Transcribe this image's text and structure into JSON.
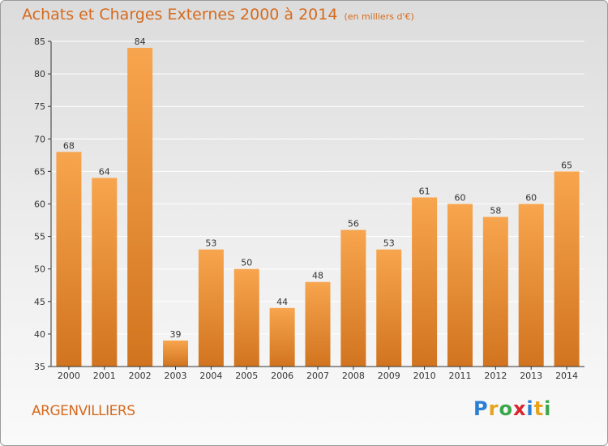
{
  "header": {
    "title": "Achats et Charges Externes 2000 à 2014",
    "subtitle": "(en milliers d'€)"
  },
  "footer": {
    "commune": "ARGENVILLIERS",
    "logo_letters": [
      {
        "char": "P",
        "color": "#2a7fd4"
      },
      {
        "char": "r",
        "color": "#e8a21c"
      },
      {
        "char": "o",
        "color": "#3aa84a"
      },
      {
        "char": "x",
        "color": "#d8262c"
      },
      {
        "char": "i",
        "color": "#2a7fd4"
      },
      {
        "char": "t",
        "color": "#e8a21c"
      },
      {
        "char": "i",
        "color": "#3aa84a"
      }
    ]
  },
  "colors": {
    "bar_light": "#f7a54e",
    "bar_dark": "#d2741f",
    "grid": "#ffffff",
    "axis": "#333333"
  },
  "chart_data": {
    "type": "bar",
    "title": "Achats et Charges Externes 2000 à 2014",
    "subtitle": "(en milliers d'€)",
    "categories": [
      "2000",
      "2001",
      "2002",
      "2003",
      "2004",
      "2005",
      "2006",
      "2007",
      "2008",
      "2009",
      "2010",
      "2011",
      "2012",
      "2013",
      "2014"
    ],
    "values": [
      68,
      64,
      84,
      39,
      53,
      50,
      44,
      48,
      56,
      53,
      61,
      60,
      58,
      60,
      65
    ],
    "ylim": [
      35,
      85
    ],
    "yticks": [
      35,
      40,
      45,
      50,
      55,
      60,
      65,
      70,
      75,
      80,
      85
    ],
    "grid": true,
    "xlabel": "",
    "ylabel": ""
  }
}
